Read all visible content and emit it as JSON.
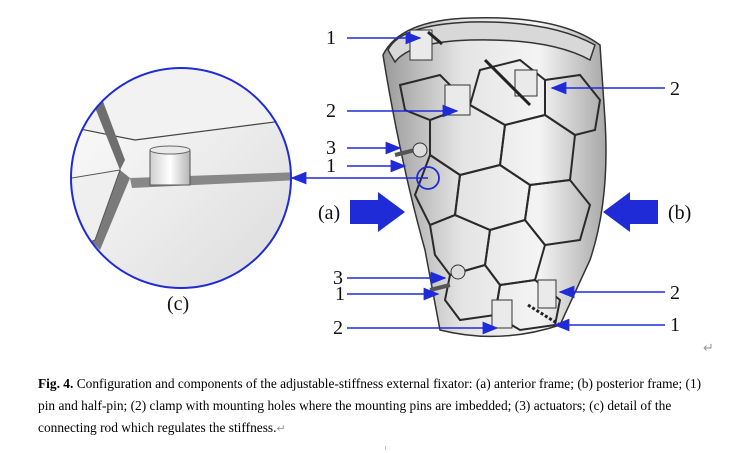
{
  "figure": {
    "callouts": {
      "top_left_1": "1",
      "top_left_2": "2",
      "mid_left_3": "3",
      "mid_left_1": "1",
      "top_right_2": "2",
      "low_left_3": "3",
      "low_left_1": "1",
      "bottom_left_2": "2",
      "low_right_2": "2",
      "bottom_right_1": "1"
    },
    "frame_labels": {
      "anterior": "(a)",
      "posterior": "(b)"
    },
    "detail_label": "(c)",
    "accent_color": "#1f2bd6"
  },
  "caption": {
    "figure_number": "Fig. 4.",
    "text": "Configuration and components of the adjustable-stiffness external fixator: (a) anterior frame; (b) posterior frame; (1) pin and half-pin; (2) clamp with mounting holes where the mounting pins are imbedded; (3) actuators; (c) detail of the connecting rod which regulates the stiffness.",
    "return_mark": "↵"
  },
  "paragraph_mark": "↵"
}
